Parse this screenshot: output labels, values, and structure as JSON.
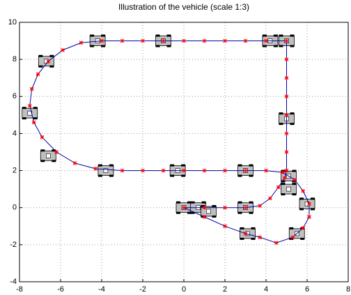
{
  "chart_data": {
    "type": "line",
    "title": "Illustration of the vehicle (scale 1:3)",
    "xlim": [
      -8,
      8
    ],
    "xticks": [
      -8,
      -6,
      -4,
      -2,
      0,
      2,
      4,
      6,
      8
    ],
    "ylim": [
      -4,
      10
    ],
    "yticks": [
      -4,
      -2,
      0,
      2,
      4,
      6,
      8,
      10
    ],
    "grid": true,
    "series": [
      {
        "color": "#0000aa",
        "marker_color": "#ff0000",
        "x": [
          5,
          5,
          5,
          5,
          5,
          5,
          5,
          5,
          4,
          3,
          2,
          1,
          0,
          -1,
          -2,
          -3,
          -4,
          -5,
          -5.9,
          -6.6,
          -7.1,
          -7.4,
          -7.5,
          -7.3,
          -6.9,
          -6.2,
          -5.3,
          -4.3,
          -3,
          -2,
          -1,
          0,
          1,
          2,
          3,
          4,
          4.8,
          5.4,
          5.8,
          6.1,
          6.1,
          5.8,
          5.3,
          4.5,
          3.7,
          3,
          2,
          1,
          0,
          1,
          2,
          3,
          3.7,
          4.2,
          4.6,
          4.9,
          5
        ],
        "values": [
          2,
          3,
          4,
          5,
          6,
          7,
          8,
          9,
          9,
          9,
          9,
          9,
          9,
          9,
          9,
          9,
          9,
          8.9,
          8.5,
          7.9,
          7.2,
          6.4,
          5.5,
          4.6,
          3.8,
          3,
          2.4,
          2.1,
          2,
          2,
          2,
          2,
          2,
          2,
          2,
          2,
          1.9,
          1.5,
          0.9,
          0.2,
          -0.5,
          -1.1,
          -1.6,
          -1.9,
          -1.6,
          -1.4,
          -1,
          -0.5,
          0,
          0,
          0,
          0,
          0.1,
          0.5,
          1.1,
          1.6,
          2
        ]
      },
      {
        "type": "vehicle",
        "color": "#c0c0c0",
        "x": [
          -4.2,
          -1,
          4.2,
          5,
          -6.7,
          -7.5,
          -6.6,
          -3.8,
          -0.3,
          3,
          5,
          5.1,
          5.1,
          6,
          5.5,
          3.1,
          3,
          0,
          0.7,
          1.2
        ],
        "values": [
          9,
          9,
          9,
          9,
          7.9,
          5.1,
          2.8,
          2,
          2,
          2,
          4.8,
          1.7,
          1,
          0.2,
          -1.4,
          -1.4,
          0,
          0,
          0,
          -0.2
        ]
      }
    ]
  }
}
